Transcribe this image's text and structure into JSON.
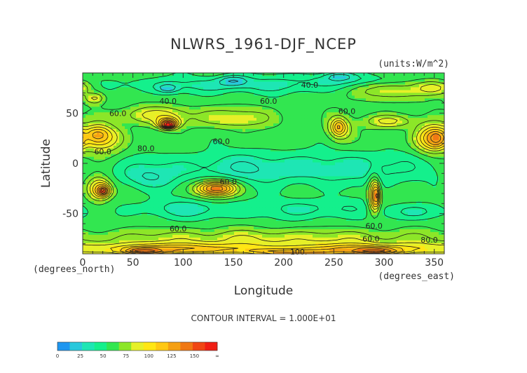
{
  "chart_data": {
    "type": "heatmap",
    "title": "NLWRS_1961-DJF_NCEP",
    "units": "(units:W/m^2)",
    "xlabel": "Longitude",
    "ylabel": "Latitude",
    "x_unit": "(degrees_east)",
    "y_unit": "(degrees_north)",
    "xlim": [
      0,
      360
    ],
    "ylim": [
      -90,
      90
    ],
    "x_ticks": [
      0,
      50,
      100,
      150,
      200,
      250,
      300,
      350
    ],
    "y_ticks": [
      -50,
      0,
      50
    ],
    "contour_interval": "CONTOUR INTERVAL = 1.000E+01",
    "colorbar": {
      "ticks": [
        "0",
        "25",
        "50",
        "75",
        "100",
        "125",
        "150",
        "∞"
      ],
      "bins": [
        {
          "from": 0,
          "to": 12.5,
          "color": "#1e96f0"
        },
        {
          "from": 12.5,
          "to": 25,
          "color": "#28c8dc"
        },
        {
          "from": 25,
          "to": 37.5,
          "color": "#1ee6b4"
        },
        {
          "from": 37.5,
          "to": 50,
          "color": "#14f08c"
        },
        {
          "from": 50,
          "to": 62.5,
          "color": "#32e650"
        },
        {
          "from": 62.5,
          "to": 75,
          "color": "#8ce628"
        },
        {
          "from": 75,
          "to": 87.5,
          "color": "#e6f028"
        },
        {
          "from": 87.5,
          "to": 100,
          "color": "#ffe614"
        },
        {
          "from": 100,
          "to": 112.5,
          "color": "#ffc814"
        },
        {
          "from": 112.5,
          "to": 125,
          "color": "#f5a014"
        },
        {
          "from": 125,
          "to": 137.5,
          "color": "#f07814"
        },
        {
          "from": 137.5,
          "to": 150,
          "color": "#f04614"
        },
        {
          "from": 150,
          "to": 162.5,
          "color": "#f01e14"
        }
      ]
    },
    "contour_labels": [
      {
        "text": "40.0",
        "lon": 85,
        "lat": 62
      },
      {
        "text": "60.0",
        "lon": 35,
        "lat": 50
      },
      {
        "text": "60.0",
        "lon": 185,
        "lat": 62
      },
      {
        "text": "40.0",
        "lon": 226,
        "lat": 78
      },
      {
        "text": "60.0",
        "lon": 263,
        "lat": 52
      },
      {
        "text": "60.0",
        "lon": 20,
        "lat": 12
      },
      {
        "text": "80.0",
        "lon": 63,
        "lat": 15
      },
      {
        "text": "60.0",
        "lon": 138,
        "lat": 22
      },
      {
        "text": "60.0",
        "lon": 145,
        "lat": -18
      },
      {
        "text": "60.0",
        "lon": 290,
        "lat": -62
      },
      {
        "text": "60.0",
        "lon": 95,
        "lat": -65
      },
      {
        "text": "60.0",
        "lon": 287,
        "lat": -75
      },
      {
        "text": "80.0",
        "lon": 345,
        "lat": -76
      },
      {
        "text": "100.",
        "lon": 215,
        "lat": -88
      }
    ],
    "background_value": 55,
    "fields": [
      {
        "lon": 180,
        "lat": -5,
        "rx": 110,
        "ry": 16,
        "value": 30
      },
      {
        "lon": 65,
        "lat": -12,
        "rx": 30,
        "ry": 12,
        "value": 30
      },
      {
        "lon": 290,
        "lat": -5,
        "rx": 45,
        "ry": 14,
        "value": 34
      },
      {
        "lon": 110,
        "lat": -45,
        "rx": 60,
        "ry": 10,
        "value": 35
      },
      {
        "lon": 230,
        "lat": -45,
        "rx": 55,
        "ry": 10,
        "value": 36
      },
      {
        "lon": 330,
        "lat": -48,
        "rx": 30,
        "ry": 8,
        "value": 36
      },
      {
        "lon": 150,
        "lat": 78,
        "rx": 120,
        "ry": 8,
        "value": 36
      },
      {
        "lon": 260,
        "lat": 82,
        "rx": 60,
        "ry": 6,
        "value": 34
      },
      {
        "lon": 150,
        "lat": 82,
        "rx": 15,
        "ry": 5,
        "value": 15
      },
      {
        "lon": 85,
        "lat": 75,
        "rx": 10,
        "ry": 4,
        "value": 20
      },
      {
        "lon": 255,
        "lat": 86,
        "rx": 14,
        "ry": 4,
        "value": 20
      },
      {
        "lon": 75,
        "lat": 48,
        "rx": 45,
        "ry": 9,
        "value": 82
      },
      {
        "lon": 150,
        "lat": 45,
        "rx": 40,
        "ry": 10,
        "value": 80
      },
      {
        "lon": 20,
        "lat": 25,
        "rx": 22,
        "ry": 15,
        "value": 88
      },
      {
        "lon": 15,
        "lat": 28,
        "rx": 12,
        "ry": 8,
        "value": 118
      },
      {
        "lon": 85,
        "lat": 40,
        "rx": 10,
        "ry": 5,
        "value": 140
      },
      {
        "lon": 85,
        "lat": 38,
        "rx": 5,
        "ry": 2.5,
        "value": 160
      },
      {
        "lon": 255,
        "lat": 35,
        "rx": 12,
        "ry": 12,
        "value": 90
      },
      {
        "lon": 255,
        "lat": 36,
        "rx": 5,
        "ry": 6,
        "value": 112
      },
      {
        "lon": 305,
        "lat": 42,
        "rx": 25,
        "ry": 7,
        "value": 85
      },
      {
        "lon": 345,
        "lat": 25,
        "rx": 16,
        "ry": 14,
        "value": 96
      },
      {
        "lon": 352,
        "lat": 25,
        "rx": 10,
        "ry": 9,
        "value": 130
      },
      {
        "lon": 300,
        "lat": 72,
        "rx": 30,
        "ry": 10,
        "value": 80
      },
      {
        "lon": 350,
        "lat": 75,
        "rx": 20,
        "ry": 8,
        "value": 88
      },
      {
        "lon": 12,
        "lat": 65,
        "rx": 10,
        "ry": 6,
        "value": 86
      },
      {
        "lon": 15,
        "lat": -25,
        "rx": 12,
        "ry": 12,
        "value": 96
      },
      {
        "lon": 20,
        "lat": -27,
        "rx": 7,
        "ry": 6,
        "value": 128
      },
      {
        "lon": 20,
        "lat": -27,
        "rx": 3,
        "ry": 2.5,
        "value": 155
      },
      {
        "lon": 133,
        "lat": -25,
        "rx": 22,
        "ry": 9,
        "value": 96
      },
      {
        "lon": 133,
        "lat": -25,
        "rx": 14,
        "ry": 5,
        "value": 128
      },
      {
        "lon": 290,
        "lat": -32,
        "rx": 6,
        "ry": 18,
        "value": 96
      },
      {
        "lon": 292,
        "lat": -32,
        "rx": 3,
        "ry": 10,
        "value": 128
      },
      {
        "lon": 180,
        "lat": -75,
        "rx": 220,
        "ry": 10,
        "value": 78
      },
      {
        "lon": 100,
        "lat": -85,
        "rx": 90,
        "ry": 6,
        "value": 112
      },
      {
        "lon": 270,
        "lat": -85,
        "rx": 80,
        "ry": 6,
        "value": 108
      },
      {
        "lon": 60,
        "lat": -87,
        "rx": 20,
        "ry": 3,
        "value": 140
      },
      {
        "lon": 290,
        "lat": -87,
        "rx": 25,
        "ry": 3,
        "value": 138
      },
      {
        "lon": 215,
        "lat": -88,
        "rx": 45,
        "ry": 3,
        "value": 122
      }
    ]
  }
}
